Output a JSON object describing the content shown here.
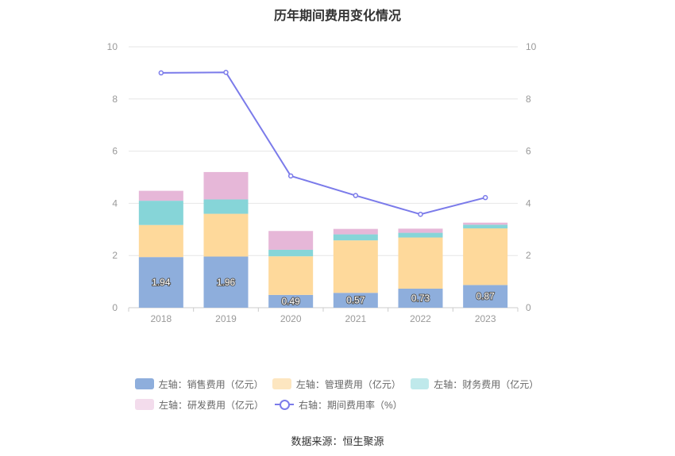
{
  "chart_data": {
    "type": "bar",
    "title": "历年期间费用变化情况",
    "categories": [
      "2018",
      "2019",
      "2020",
      "2021",
      "2022",
      "2023"
    ],
    "stacked": true,
    "ylim_left": [
      0,
      10
    ],
    "ylim_right": [
      0,
      10
    ],
    "y_ticks": [
      "0",
      "2",
      "4",
      "6",
      "8",
      "10"
    ],
    "grid": true,
    "legend_position": "bottom",
    "series": [
      {
        "name": "左轴：销售费用（亿元）",
        "axis": "left",
        "type": "bar",
        "color": "#8eaedc",
        "values": [
          1.94,
          1.96,
          0.49,
          0.57,
          0.73,
          0.87
        ],
        "labels": [
          "1.94",
          "1.96",
          "0.49",
          "0.57",
          "0.73",
          "0.87"
        ]
      },
      {
        "name": "左轴：管理费用（亿元）",
        "axis": "left",
        "type": "bar",
        "color": "#fed99b",
        "values": [
          1.23,
          1.64,
          1.48,
          2.01,
          1.96,
          2.17
        ]
      },
      {
        "name": "左轴：财务费用（亿元）",
        "axis": "left",
        "type": "bar",
        "color": "#86d5d8",
        "values": [
          0.93,
          0.55,
          0.25,
          0.23,
          0.18,
          0.14
        ]
      },
      {
        "name": "左轴：研发费用（亿元）",
        "axis": "left",
        "type": "bar",
        "color": "#e6b7d8",
        "values": [
          0.38,
          1.05,
          0.72,
          0.21,
          0.16,
          0.08
        ]
      },
      {
        "name": "右轴：期间费用率（%）",
        "axis": "right",
        "type": "line",
        "color": "#7b7bea",
        "values": [
          9.0,
          9.02,
          5.05,
          4.3,
          3.58,
          4.22
        ]
      }
    ]
  },
  "legend": {
    "row1": [
      {
        "label": "左轴：销售费用（亿元）",
        "color": "#8eaedc"
      },
      {
        "label": "左轴：管理费用（亿元）",
        "color": "#fde6c0"
      },
      {
        "label": "左轴：财务费用（亿元）",
        "color": "#bfe9eb"
      }
    ],
    "row2": [
      {
        "label": "左轴：研发费用（亿元）",
        "color": "#f3dcec"
      },
      {
        "label": "右轴：期间费用率（%）",
        "color": "#7b7bea"
      }
    ]
  },
  "source": "数据来源：恒生聚源"
}
